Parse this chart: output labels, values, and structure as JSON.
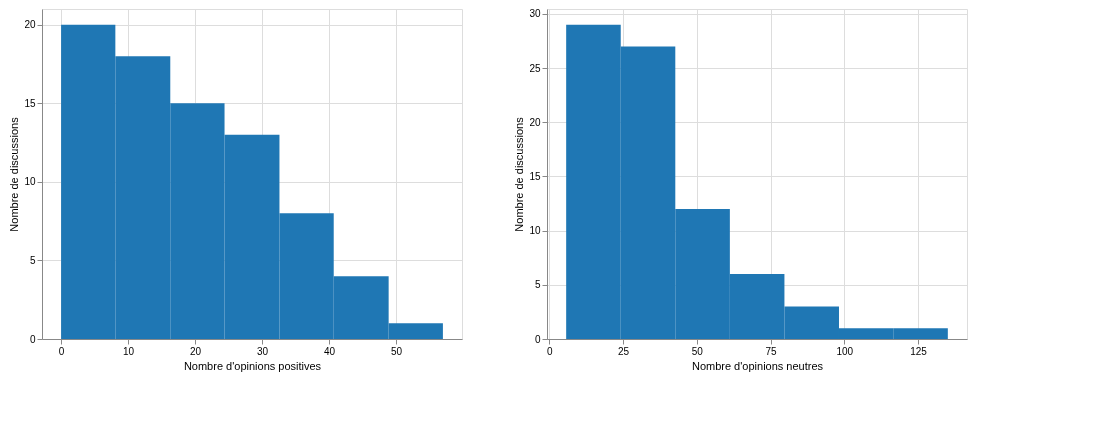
{
  "chart_data": [
    {
      "type": "histogram",
      "xlabel": "Nombre d'opinions positives",
      "ylabel": "Nombre de discussions",
      "color": "#1f77b4",
      "bins": [
        0,
        8.1,
        16.3,
        24.4,
        32.6,
        40.7,
        48.9,
        57
      ],
      "values": [
        20,
        18,
        15,
        13,
        8,
        4,
        1
      ],
      "xlim": [
        -2.85,
        59.85
      ],
      "xticks": [
        0,
        10,
        20,
        30,
        40,
        50
      ],
      "ylim": [
        0,
        21
      ],
      "yticks": [
        0,
        5,
        10,
        15,
        20
      ],
      "grid": true
    },
    {
      "type": "histogram",
      "xlabel": "Nombre d'opinions neutres",
      "ylabel": "Nombre de discussions",
      "color": "#1f77b4",
      "bins": [
        5.7,
        24.2,
        42.7,
        61.2,
        79.7,
        98.2,
        116.6,
        135.1
      ],
      "values": [
        29,
        27,
        12,
        6,
        3,
        1,
        1
      ],
      "xlim": [
        -0.8,
        141.6
      ],
      "xticks": [
        0,
        25,
        50,
        75,
        100,
        125
      ],
      "ylim": [
        0,
        30.45
      ],
      "yticks": [
        0,
        5,
        10,
        15,
        20,
        25,
        30
      ],
      "grid": true
    }
  ]
}
